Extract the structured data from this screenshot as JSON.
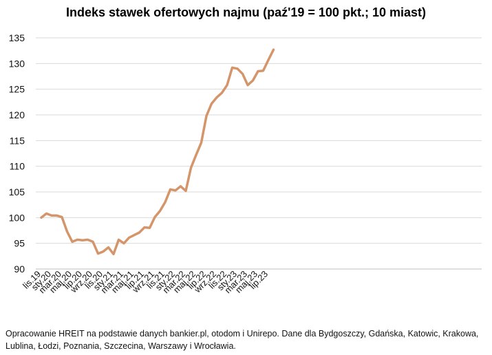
{
  "chart_data": {
    "type": "line",
    "title": "Indeks stawek ofertowych najmu (paź'19 = 100 pkt.; 10 miast)",
    "ylim": [
      90,
      135
    ],
    "yticks": [
      90,
      95,
      100,
      105,
      110,
      115,
      120,
      125,
      130,
      135
    ],
    "grid": "horizontal",
    "line_color": "#D4956A",
    "tick_labels": [
      "lis.19",
      "sty.20",
      "mar.20",
      "maj.20",
      "lip.20",
      "wrz.20",
      "lis.20",
      "sty.21",
      "mar.21",
      "maj.21",
      "lip.21",
      "wrz.21",
      "lis.21",
      "sty.22",
      "mar.22",
      "maj.22",
      "lip.22",
      "wrz.22",
      "lis.22",
      "sty.23",
      "mar.23",
      "maj.23",
      "lip.23"
    ],
    "series": [
      {
        "values": [
          100.0,
          100.8,
          100.4,
          100.4,
          100.1,
          97.3,
          95.3,
          95.7,
          95.6,
          95.7,
          95.3,
          93.0,
          93.4,
          94.2,
          92.9,
          95.7,
          95.0,
          96.1,
          96.6,
          97.1,
          98.1,
          98.0,
          100.1,
          101.3,
          103.0,
          105.5,
          105.3,
          106.1,
          105.2,
          109.7,
          112.2,
          114.6,
          119.8,
          122.2,
          123.4,
          124.3,
          125.8,
          129.2,
          129.0,
          128.0,
          125.8,
          126.7,
          128.5,
          128.6,
          130.7,
          132.7
        ]
      }
    ]
  },
  "source_note": "Opracowanie HREIT na podstawie danych bankier.pl, otodom i Unirepo. Dane dla Bydgoszczy, Gdańska, Katowic, Krakowa, Lublina, Łodzi, Poznania, Szczecina, Warszawy i Wrocławia."
}
